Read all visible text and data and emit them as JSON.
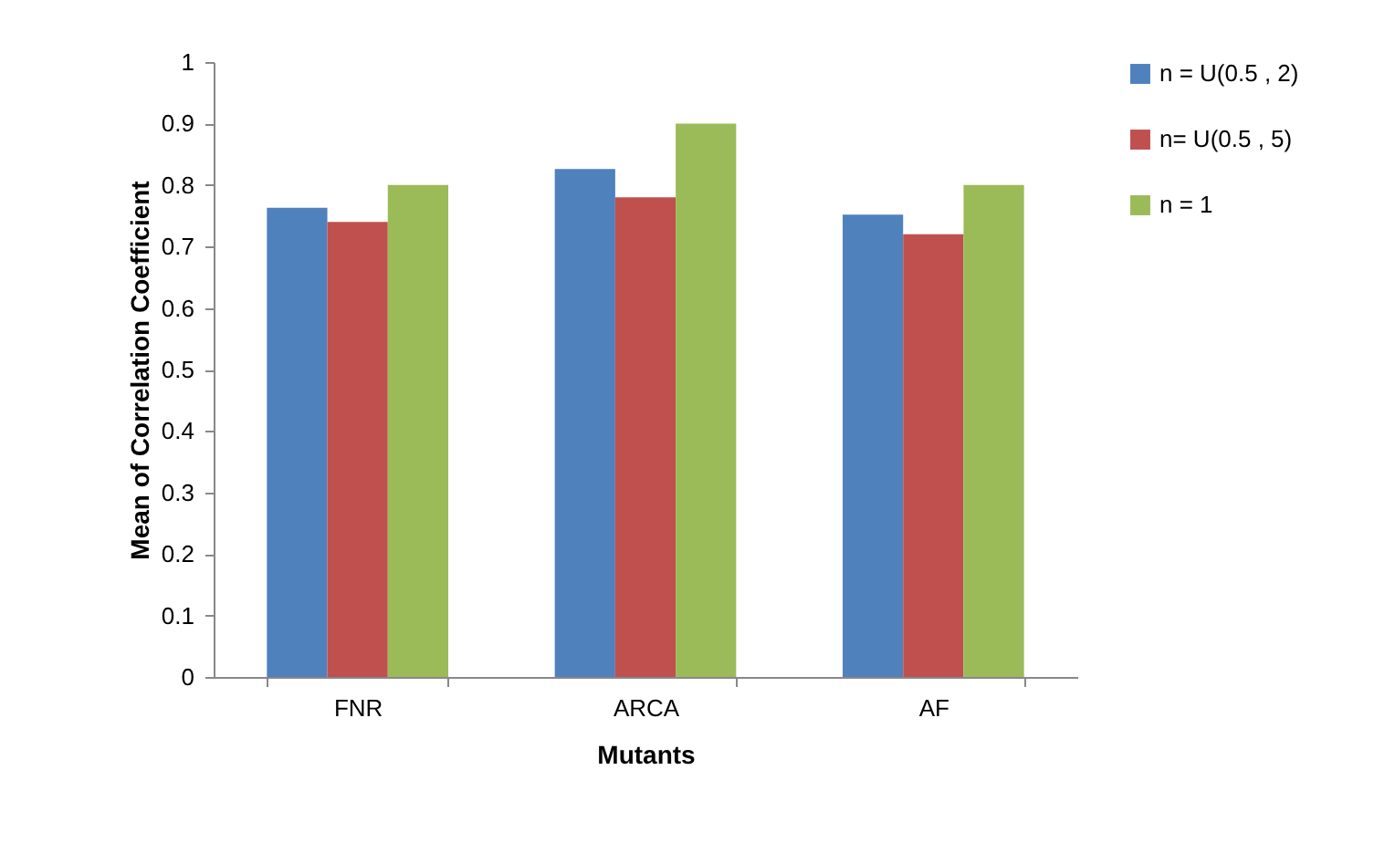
{
  "chart_data": {
    "type": "bar",
    "xlabel": "Mutants",
    "ylabel": "Mean of Correlation Coefficient",
    "categories": [
      "FNR",
      "ARCA",
      "AF"
    ],
    "series": [
      {
        "name": "n = U(0.5 , 2)",
        "color": "#4f81bd",
        "values": [
          0.763,
          0.826,
          0.752
        ]
      },
      {
        "name": "n= U(0.5 , 5)",
        "color": "#c0504d",
        "values": [
          0.74,
          0.78,
          0.72
        ]
      },
      {
        "name": "n = 1",
        "color": "#9bbb59",
        "values": [
          0.8,
          0.9,
          0.8
        ]
      }
    ],
    "ylim": [
      0,
      1
    ],
    "yticks": [
      0,
      0.1,
      0.2,
      0.3,
      0.4,
      0.5,
      0.6,
      0.7,
      0.8,
      0.9,
      1
    ],
    "grid": false,
    "legend": "right"
  }
}
